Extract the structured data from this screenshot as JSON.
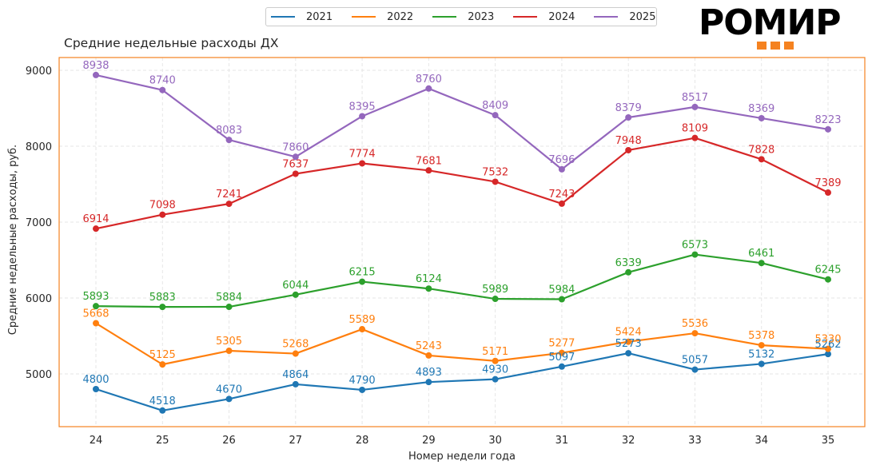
{
  "logo": {
    "text": "РОМИР",
    "accent_color": "#f58220",
    "dots": 3
  },
  "chart_data": {
    "type": "line",
    "title": "Средние недельные расходы ДХ",
    "xlabel": "Номер недели года",
    "ylabel": "Средние недельные расходы, руб.",
    "x": [
      24,
      25,
      26,
      27,
      28,
      29,
      30,
      31,
      32,
      33,
      34,
      35
    ],
    "xticks": [
      "24",
      "25",
      "26",
      "27",
      "28",
      "29",
      "30",
      "31",
      "32",
      "33",
      "34",
      "35"
    ],
    "yticks": [
      5000,
      6000,
      7000,
      8000,
      9000
    ],
    "ylim": [
      4300,
      9200
    ],
    "grid": true,
    "frame_color": "#f58220",
    "legend_position": "top-center",
    "series": [
      {
        "name": "2021",
        "color": "#1f77b4",
        "values": [
          4800,
          4518,
          4670,
          4864,
          4790,
          4893,
          4930,
          5097,
          5273,
          5057,
          5132,
          5262
        ]
      },
      {
        "name": "2022",
        "color": "#ff7f0e",
        "values": [
          5668,
          5125,
          5305,
          5268,
          5589,
          5243,
          5171,
          5277,
          5424,
          5536,
          5378,
          5330
        ]
      },
      {
        "name": "2023",
        "color": "#2ca02c",
        "values": [
          5893,
          5883,
          5884,
          6044,
          6215,
          6124,
          5989,
          5984,
          6339,
          6573,
          6461,
          6245
        ]
      },
      {
        "name": "2024",
        "color": "#d62728",
        "values": [
          6914,
          7098,
          7241,
          7637,
          7774,
          7681,
          7532,
          7243,
          7948,
          8109,
          7828,
          7389
        ]
      },
      {
        "name": "2025",
        "color": "#9467bd",
        "values": [
          8938,
          8740,
          8083,
          7860,
          8395,
          8760,
          8409,
          7696,
          8379,
          8517,
          8369,
          8223
        ]
      }
    ]
  }
}
